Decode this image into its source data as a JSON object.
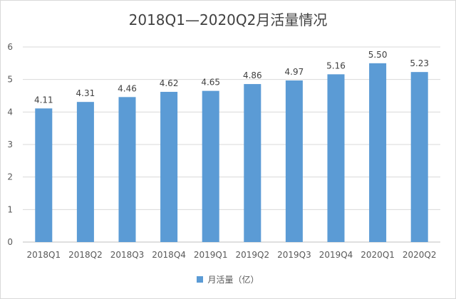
{
  "chart_data": {
    "type": "bar",
    "title": "2018Q1—2020Q2月活量情况",
    "xlabel": "",
    "ylabel": "",
    "categories": [
      "2018Q1",
      "2018Q2",
      "2018Q3",
      "2018Q4",
      "2019Q1",
      "2019Q2",
      "2019Q3",
      "2019Q4",
      "2020Q1",
      "2020Q2"
    ],
    "series": [
      {
        "name": "月活量（亿）",
        "values": [
          4.11,
          4.31,
          4.46,
          4.62,
          4.65,
          4.86,
          4.97,
          5.16,
          5.5,
          5.23
        ],
        "labels": [
          "4.11",
          "4.31",
          "4.46",
          "4.62",
          "4.65",
          "4.86",
          "4.97",
          "5.16",
          "5.50",
          "5.23"
        ],
        "color": "#5b9bd5"
      }
    ],
    "ylim": [
      0,
      6
    ],
    "yticks": [
      0,
      1,
      2,
      3,
      4,
      5,
      6
    ],
    "grid": true,
    "legend_position": "bottom"
  }
}
